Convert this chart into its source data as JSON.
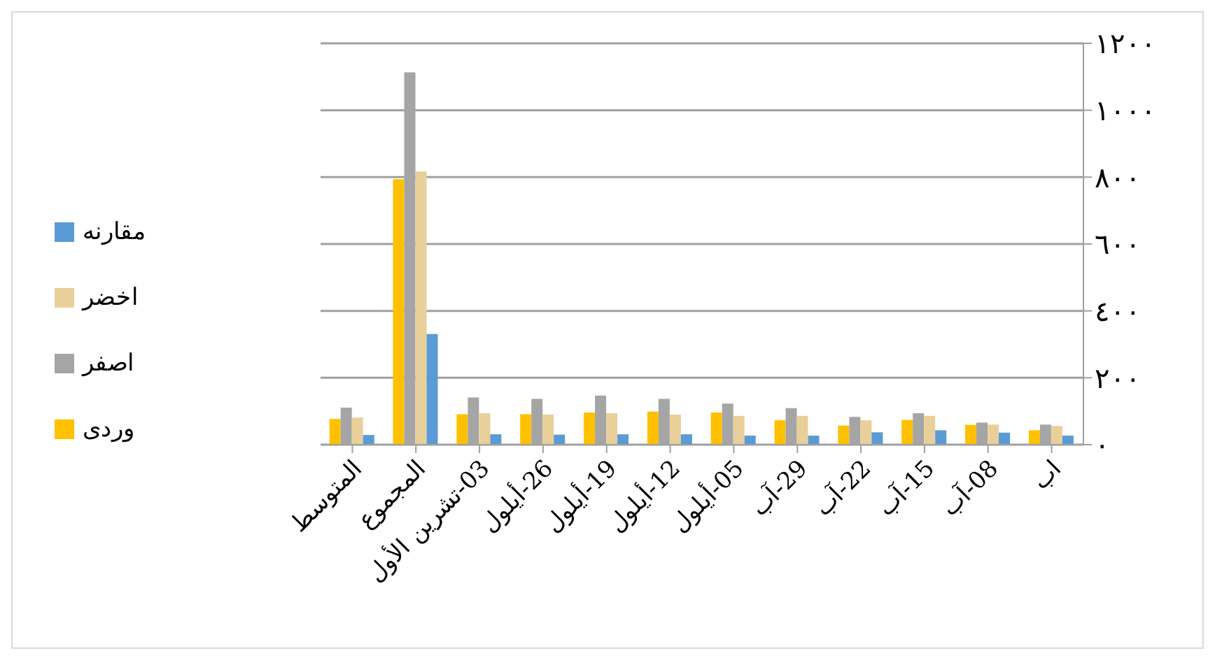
{
  "chart_data": {
    "type": "bar",
    "categories": [
      "المتوسط",
      "المجموع",
      "03-تشرين الأول",
      "26-أيلول",
      "19-أيلول",
      "12-أيلول",
      "05-أيلول",
      "29-آب",
      "22-آب",
      "15-آب",
      "08-آب",
      "اب"
    ],
    "series": [
      {
        "name": "وردى",
        "color": "#ffc000",
        "values": [
          77,
          794,
          91,
          91,
          96,
          99,
          96,
          73,
          57,
          74,
          59,
          43
        ]
      },
      {
        "name": "اصفر",
        "color": "#a5a5a5",
        "values": [
          111,
          1113,
          141,
          137,
          147,
          137,
          123,
          109,
          83,
          94,
          66,
          60
        ]
      },
      {
        "name": "اخضر",
        "color": "#e9cf9a",
        "values": [
          81,
          817,
          94,
          90,
          94,
          90,
          86,
          86,
          73,
          86,
          60,
          56
        ]
      },
      {
        "name": "مقارنه",
        "color": "#5b9bd5",
        "values": [
          29,
          331,
          31,
          30,
          31,
          31,
          27,
          27,
          37,
          43,
          36,
          27
        ]
      }
    ],
    "ylim": [
      0,
      1200
    ],
    "yticks": [
      {
        "value": 0,
        "label": "٠"
      },
      {
        "value": 200,
        "label": "٢٠٠"
      },
      {
        "value": 400,
        "label": "٤٠٠"
      },
      {
        "value": 600,
        "label": "٦٠٠"
      },
      {
        "value": 800,
        "label": "٨٠٠"
      },
      {
        "value": 1000,
        "label": "١٠٠٠"
      },
      {
        "value": 1200,
        "label": "١٢٠٠"
      }
    ],
    "grid": "y",
    "legend": "left"
  }
}
